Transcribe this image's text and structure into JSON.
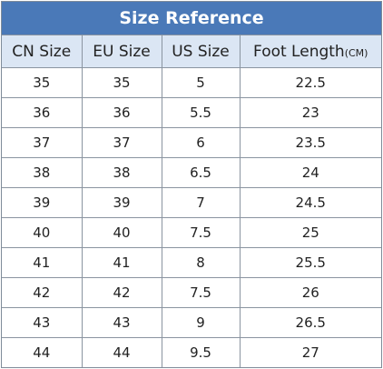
{
  "title": "Size Reference",
  "table": {
    "headers": [
      "CN Size",
      "EU Size",
      "US Size",
      "Foot Length"
    ],
    "header_unit": "(CM)",
    "rows": [
      [
        "35",
        "35",
        "5",
        "22.5"
      ],
      [
        "36",
        "36",
        "5.5",
        "23"
      ],
      [
        "37",
        "37",
        "6",
        "23.5"
      ],
      [
        "38",
        "38",
        "6.5",
        "24"
      ],
      [
        "39",
        "39",
        "7",
        "24.5"
      ],
      [
        "40",
        "40",
        "7.5",
        "25"
      ],
      [
        "41",
        "41",
        "8",
        "25.5"
      ],
      [
        "42",
        "42",
        "7.5",
        "26"
      ],
      [
        "43",
        "43",
        "9",
        "26.5"
      ],
      [
        "44",
        "44",
        "9.5",
        "27"
      ]
    ]
  }
}
